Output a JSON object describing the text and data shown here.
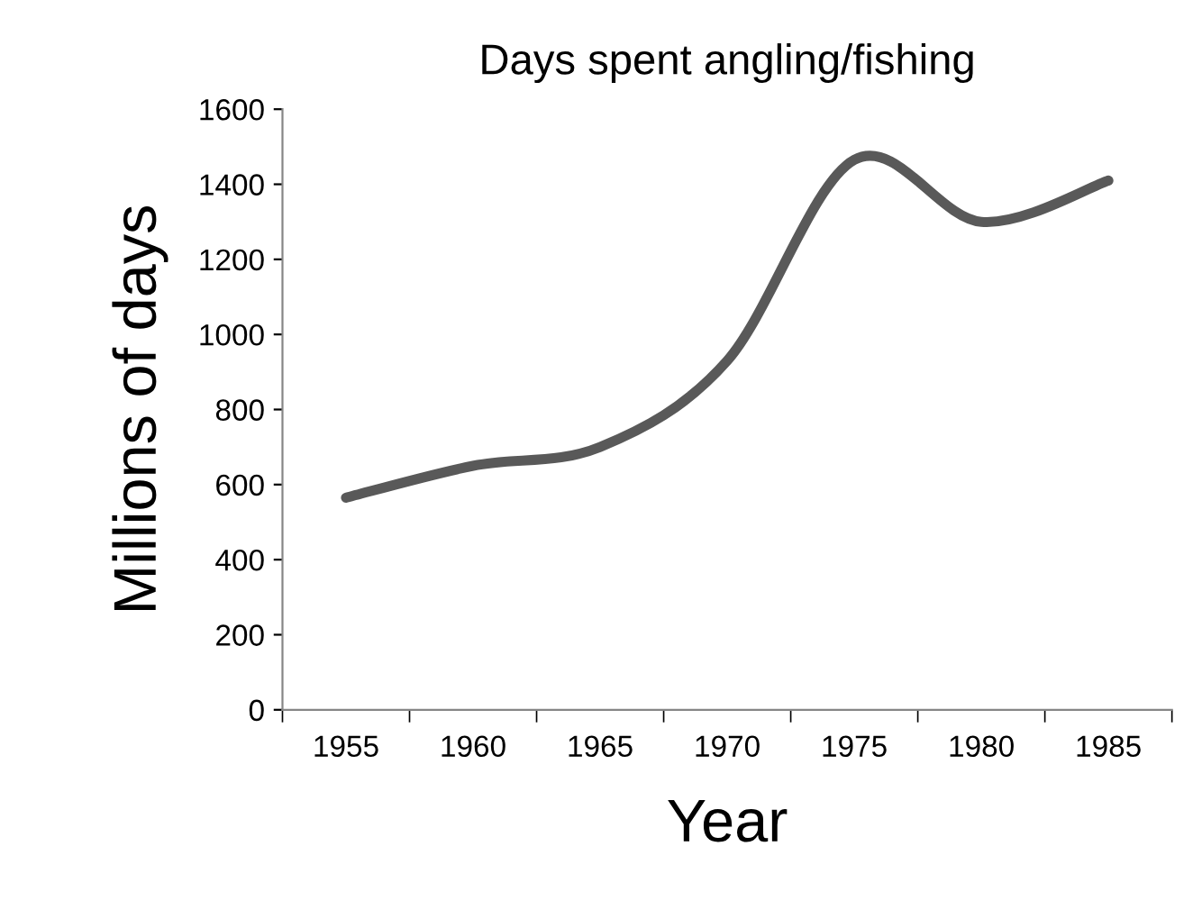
{
  "chart_data": {
    "type": "line",
    "title": "Days spent angling/fishing",
    "xlabel": "Year",
    "ylabel": "Millions of days",
    "categories": [
      "1955",
      "1960",
      "1965",
      "1970",
      "1975",
      "1980",
      "1985"
    ],
    "series": [
      {
        "color": "#595959",
        "values": [
          565,
          650,
          700,
          930,
          1465,
          1300,
          1410
        ]
      }
    ],
    "ylim": [
      0,
      1600
    ],
    "yticks": [
      0,
      200,
      400,
      600,
      800,
      1000,
      1200,
      1400,
      1600
    ],
    "grid": false,
    "legend": false,
    "marker": "none",
    "line_style": "solid"
  }
}
